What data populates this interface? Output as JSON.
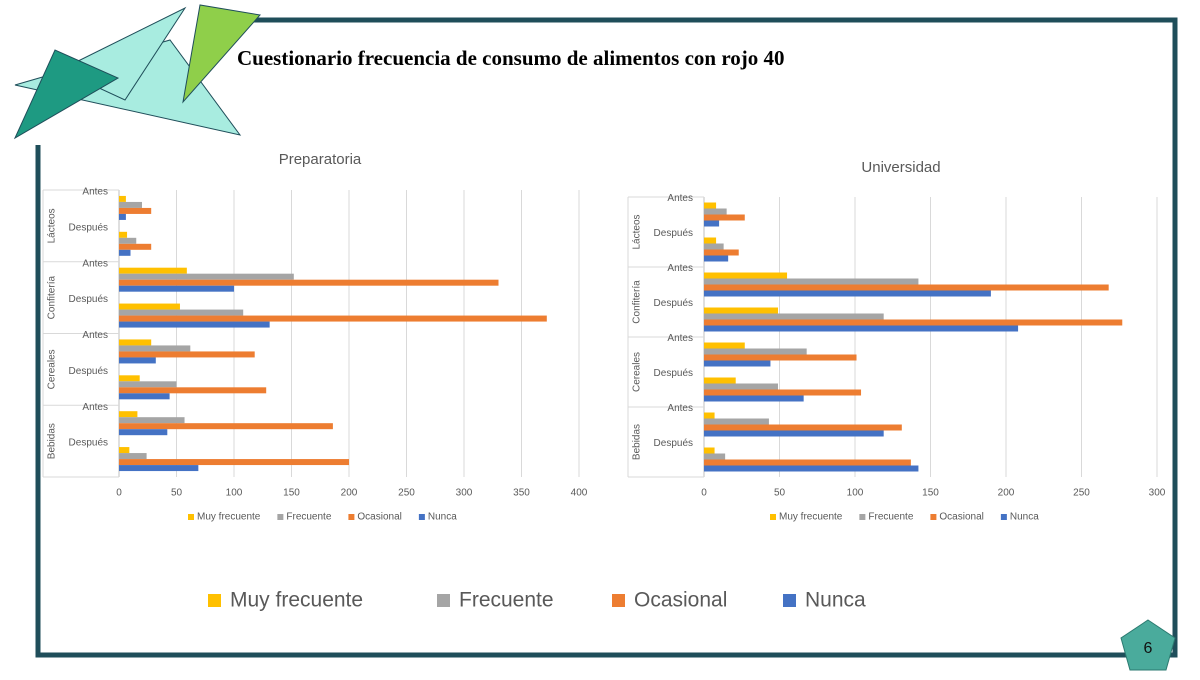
{
  "title": "Cuestionario frecuencia de consumo de alimentos con rojo 40",
  "page_number": "6",
  "chart_data": [
    {
      "type": "grouped-hbar",
      "title": "Preparatoria",
      "groups": [
        "Lácteos",
        "Confitería",
        "Cereales",
        "Bebidas"
      ],
      "categories": [
        "Antes",
        "Después",
        "Antes",
        "Después",
        "Antes",
        "Después",
        "Antes",
        "Después"
      ],
      "series": [
        {
          "name": "Muy frecuente",
          "color": "#ffc000",
          "values": [
            6,
            7,
            59,
            53,
            28,
            18,
            16,
            9
          ]
        },
        {
          "name": "Frecuente",
          "color": "#a5a5a5",
          "values": [
            20,
            15,
            152,
            108,
            62,
            50,
            57,
            24
          ]
        },
        {
          "name": "Ocasional",
          "color": "#ed7d31",
          "values": [
            28,
            28,
            330,
            372,
            118,
            128,
            186,
            200
          ]
        },
        {
          "name": "Nunca",
          "color": "#4472c4",
          "values": [
            6,
            10,
            100,
            131,
            32,
            44,
            42,
            69
          ]
        }
      ],
      "xlim": [
        0,
        400
      ],
      "xticks": [
        0,
        50,
        100,
        150,
        200,
        250,
        300,
        350,
        400
      ],
      "grid": true,
      "legend": "bottom"
    },
    {
      "type": "grouped-hbar",
      "title": "Universidad",
      "groups": [
        "Lácteos",
        "Confitería",
        "Cereales",
        "Bebidas"
      ],
      "categories": [
        "Antes",
        "Después",
        "Antes",
        "Después",
        "Antes",
        "Después",
        "Antes",
        "Después"
      ],
      "series": [
        {
          "name": "Muy frecuente",
          "color": "#ffc000",
          "values": [
            8,
            8,
            55,
            49,
            27,
            21,
            7,
            7
          ]
        },
        {
          "name": "Frecuente",
          "color": "#a5a5a5",
          "values": [
            15,
            13,
            142,
            119,
            68,
            49,
            43,
            14
          ]
        },
        {
          "name": "Ocasional",
          "color": "#ed7d31",
          "values": [
            27,
            23,
            268,
            277,
            101,
            104,
            131,
            137
          ]
        },
        {
          "name": "Nunca",
          "color": "#4472c4",
          "values": [
            10,
            16,
            190,
            208,
            44,
            66,
            119,
            142
          ]
        }
      ],
      "xlim": [
        0,
        300
      ],
      "xticks": [
        0,
        50,
        100,
        150,
        200,
        250,
        300
      ],
      "grid": true,
      "legend": "bottom"
    }
  ]
}
